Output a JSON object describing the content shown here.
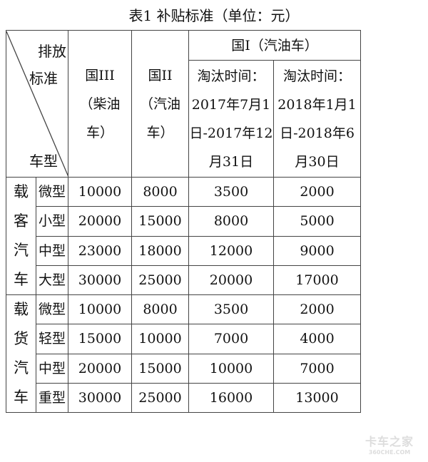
{
  "title": "表1 补贴标准（单位：元）",
  "header": {
    "corner_top": [
      "排放",
      "标准"
    ],
    "corner_bottom": "车型",
    "col_guo3": [
      "国III",
      "（柴油",
      "车）"
    ],
    "col_guo2": [
      "国II",
      "（汽油",
      "车）"
    ],
    "col_guo1": "国I（汽油车）",
    "col_guo1_a": [
      "淘汰时间：",
      "2017年7月1",
      "日-2017年12",
      "月31日"
    ],
    "col_guo1_b": [
      "淘汰时间：",
      "2018年1月1",
      "日-2018年6",
      "月30日"
    ]
  },
  "groups": [
    {
      "label": [
        "载",
        "客",
        "汽",
        "车"
      ],
      "rows": [
        {
          "type": "微型",
          "v": [
            "10000",
            "8000",
            "3500",
            "2000"
          ]
        },
        {
          "type": "小型",
          "v": [
            "20000",
            "15000",
            "8000",
            "5000"
          ]
        },
        {
          "type": "中型",
          "v": [
            "23000",
            "18000",
            "12000",
            "9000"
          ]
        },
        {
          "type": "大型",
          "v": [
            "30000",
            "25000",
            "20000",
            "17000"
          ]
        }
      ]
    },
    {
      "label": [
        "载",
        "货",
        "汽",
        "车"
      ],
      "rows": [
        {
          "type": "微型",
          "v": [
            "10000",
            "8000",
            "3500",
            "2000"
          ]
        },
        {
          "type": "轻型",
          "v": [
            "15000",
            "10000",
            "7000",
            "4000"
          ]
        },
        {
          "type": "中型",
          "v": [
            "20000",
            "15000",
            "10000",
            "7000"
          ]
        },
        {
          "type": "重型",
          "v": [
            "30000",
            "25000",
            "16000",
            "13000"
          ]
        }
      ]
    }
  ],
  "watermark": {
    "line1": "卡车之家",
    "line2": "360CHE.COM"
  }
}
